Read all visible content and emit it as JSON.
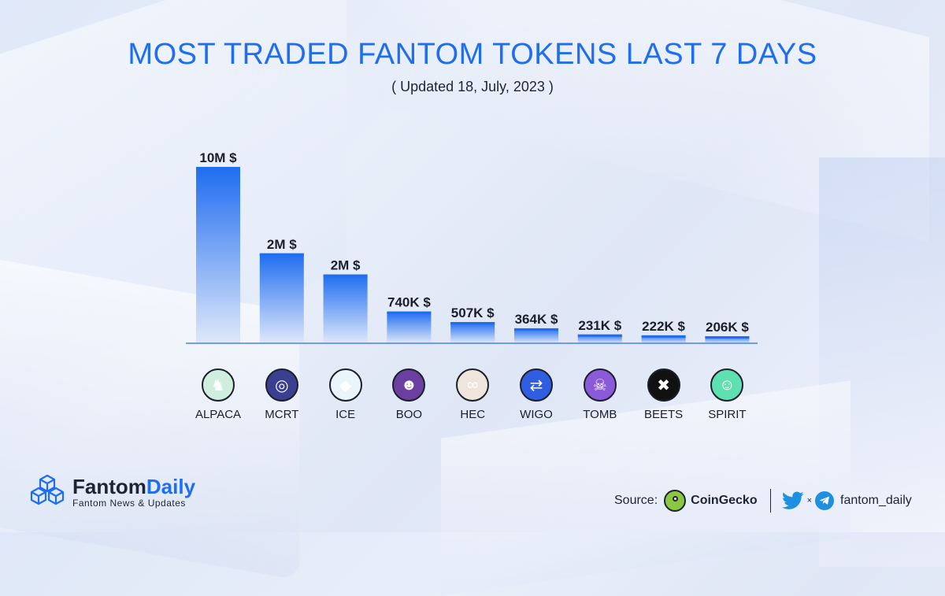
{
  "header": {
    "title": "MOST TRADED FANTOM TOKENS LAST 7 DAYS",
    "subtitle": "( Updated 18, July, 2023 )"
  },
  "chart_data": {
    "type": "bar",
    "title": "MOST TRADED FANTOM TOKENS LAST 7 DAYS",
    "subtitle": "( Updated 18, July, 2023 )",
    "categories": [
      "ALPACA",
      "MCRT",
      "ICE",
      "BOO",
      "HEC",
      "WIGO",
      "TOMB",
      "BEETS",
      "SPIRIT"
    ],
    "values": [
      10000000,
      2000000,
      2000000,
      740000,
      507000,
      364000,
      231000,
      222000,
      206000
    ],
    "display_heights": [
      10,
      5.1,
      3.9,
      1.8,
      1.2,
      0.85,
      0.5,
      0.45,
      0.4
    ],
    "data_labels": [
      "10M $",
      "2M $",
      "2M $",
      "740K $",
      "507K $",
      "364K $",
      "231K $",
      "222K $",
      "206K $"
    ],
    "xlabel": "",
    "ylabel": "",
    "grid": false,
    "bar_color_top": "#1f6df0",
    "bar_color_bottom": "#dfe8fa"
  },
  "tokens": [
    {
      "name": "ALPACA",
      "icon": "alpaca-icon",
      "bg": "#cfeede",
      "glyph": "♞"
    },
    {
      "name": "MCRT",
      "icon": "mcrt-icon",
      "bg": "#3b3f8f",
      "glyph": "◎"
    },
    {
      "name": "ICE",
      "icon": "ice-icon",
      "bg": "#e9f4fb",
      "glyph": "◆"
    },
    {
      "name": "BOO",
      "icon": "boo-icon",
      "bg": "#6b3fa0",
      "glyph": "☻"
    },
    {
      "name": "HEC",
      "icon": "hec-icon",
      "bg": "#efe5dc",
      "glyph": "∞"
    },
    {
      "name": "WIGO",
      "icon": "wigo-icon",
      "bg": "#2f5fe0",
      "glyph": "⇄"
    },
    {
      "name": "TOMB",
      "icon": "tomb-icon",
      "bg": "#8a5ad9",
      "glyph": "☠"
    },
    {
      "name": "BEETS",
      "icon": "beets-icon",
      "bg": "#111111",
      "glyph": "✖"
    },
    {
      "name": "SPIRIT",
      "icon": "spirit-icon",
      "bg": "#5fe0b0",
      "glyph": "☺"
    }
  ],
  "footer": {
    "brand_name_part1": "Fantom",
    "brand_name_part2": "Daily",
    "brand_tagline": "Fantom News & Updates",
    "source_label": "Source:",
    "source_name": "CoinGecko",
    "source_icon": "coingecko-icon",
    "x_separator": "×",
    "social_handle": "fantom_daily",
    "social_icons": [
      "twitter-icon",
      "telegram-icon"
    ]
  }
}
